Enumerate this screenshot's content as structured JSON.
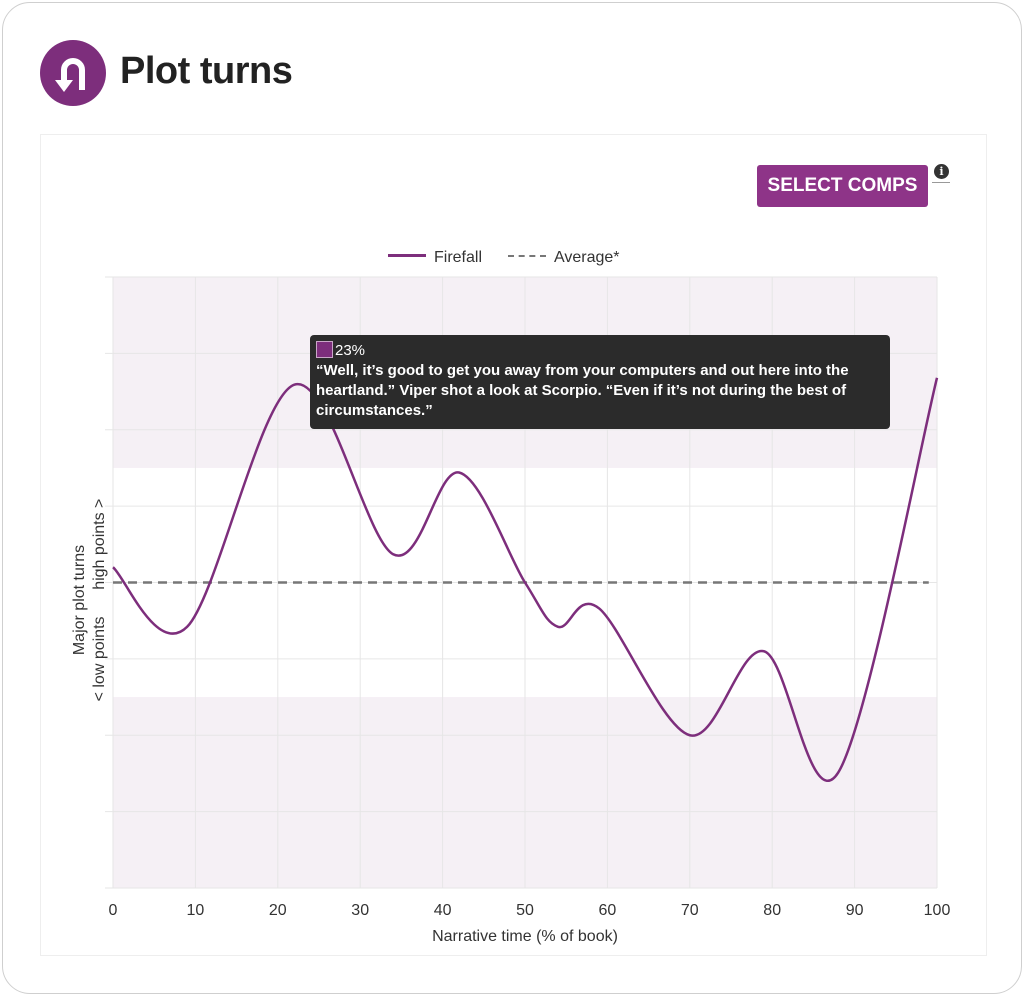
{
  "header": {
    "title": "Plot turns",
    "logo_icon": "u-turn-icon"
  },
  "toolbar": {
    "select_comps_label": "SELECT COMPS",
    "info_icon": "i"
  },
  "colors": {
    "brand": "#7d2e7c",
    "button": "#8e3488",
    "band": "#f5f0f5",
    "average": "#777777"
  },
  "tooltip": {
    "percent": "23%",
    "quote": "“Well, it’s good to get you away from your computers and out here into the heartland.” Viper shot a look at Scorpio. “Even if it’s not during the best of circumstances.”"
  },
  "chart_data": {
    "type": "line",
    "xlabel": "Narrative time (% of book)",
    "ylabel": "Major plot turns",
    "ylabel_high": "high points >",
    "ylabel_low": "< low points",
    "xlim": [
      0,
      100
    ],
    "ylim": [
      -4,
      4
    ],
    "xticks": [
      "0",
      "10",
      "20",
      "30",
      "40",
      "50",
      "60",
      "70",
      "80",
      "90",
      "100"
    ],
    "bands": {
      "high_above": 1.5,
      "low_below": -1.5
    },
    "legend": {
      "position": "top-center",
      "entries": [
        "Firefall",
        "Average*"
      ]
    },
    "series": [
      {
        "name": "Firefall",
        "x": [
          0,
          9,
          22,
          34,
          42,
          50,
          54,
          59,
          70,
          79,
          88,
          100
        ],
        "y": [
          0.2,
          -0.58,
          2.59,
          0.37,
          1.44,
          0,
          -0.58,
          -0.34,
          -2.0,
          -0.9,
          -2.49,
          2.68
        ]
      },
      {
        "name": "Average*",
        "x": [
          0,
          99
        ],
        "y": [
          0,
          0
        ]
      }
    ]
  }
}
